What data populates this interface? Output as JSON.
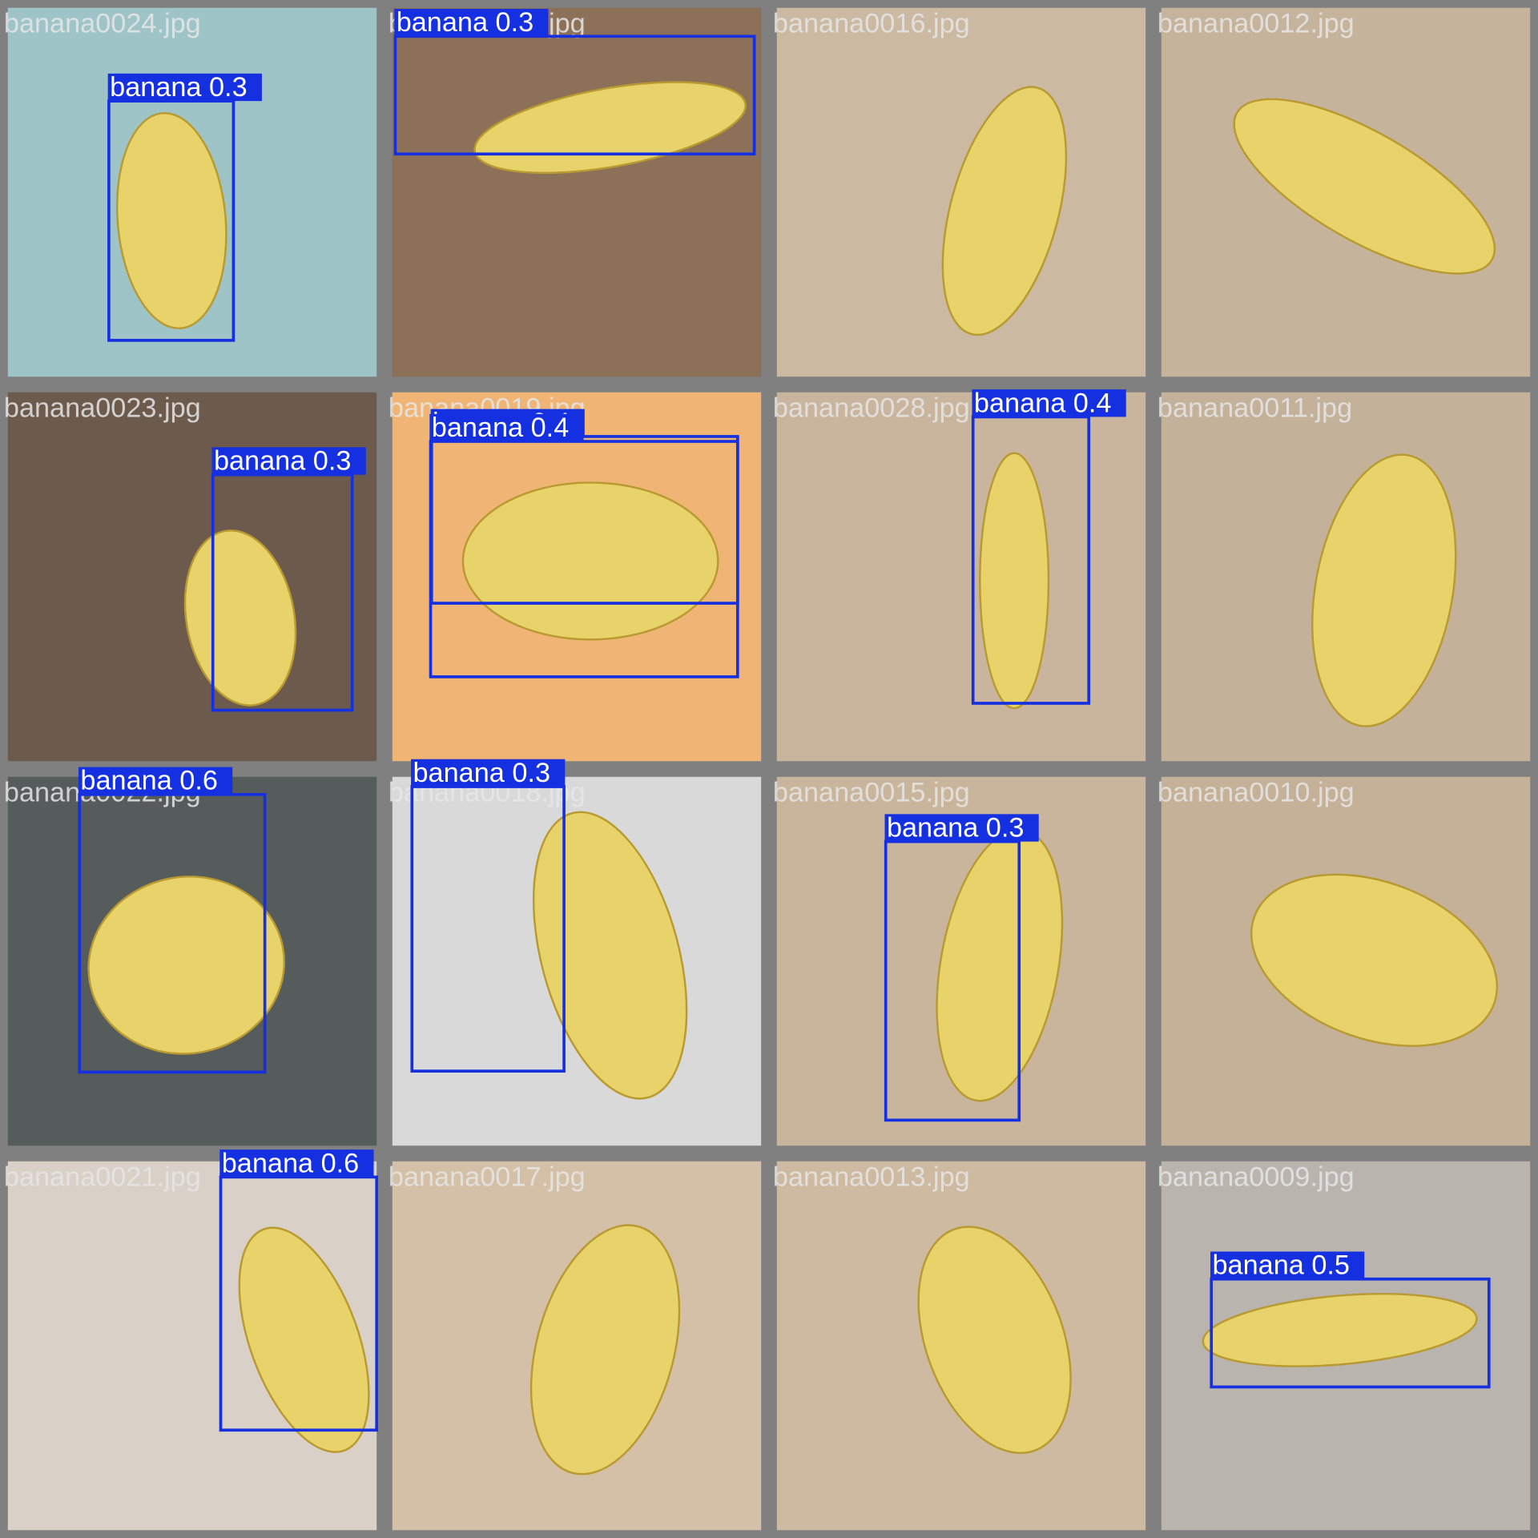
{
  "tiles": [
    {
      "filename": "banana0024.jpg",
      "detections": [
        {
          "label": "banana 0.3"
        }
      ]
    },
    {
      "filename": "banana0020.jpg",
      "detections": [
        {
          "label": "banana 0.3"
        }
      ]
    },
    {
      "filename": "banana0016.jpg",
      "detections": []
    },
    {
      "filename": "banana0012.jpg",
      "detections": []
    },
    {
      "filename": "banana0023.jpg",
      "detections": [
        {
          "label": "banana 0.3"
        }
      ]
    },
    {
      "filename": "banana0019.jpg",
      "detections": [
        {
          "label": "banana 0.4"
        },
        {
          "label": "banana 0.4"
        }
      ]
    },
    {
      "filename": "banana0028.jpg",
      "detections": [
        {
          "label": "banana 0.4"
        }
      ]
    },
    {
      "filename": "banana0011.jpg",
      "detections": []
    },
    {
      "filename": "banana0022.jpg",
      "detections": [
        {
          "label": "banana 0.6"
        }
      ]
    },
    {
      "filename": "banana0018.jpg",
      "detections": [
        {
          "label": "banana 0.3"
        }
      ]
    },
    {
      "filename": "banana0015.jpg",
      "detections": [
        {
          "label": "banana 0.3"
        }
      ]
    },
    {
      "filename": "banana0010.jpg",
      "detections": []
    },
    {
      "filename": "banana0021.jpg",
      "detections": [
        {
          "label": "banana 0.6"
        }
      ]
    },
    {
      "filename": "banana0017.jpg",
      "detections": []
    },
    {
      "filename": "banana0013.jpg",
      "detections": []
    },
    {
      "filename": "banana0009.jpg",
      "detections": [
        {
          "label": "banana 0.5"
        }
      ]
    }
  ]
}
